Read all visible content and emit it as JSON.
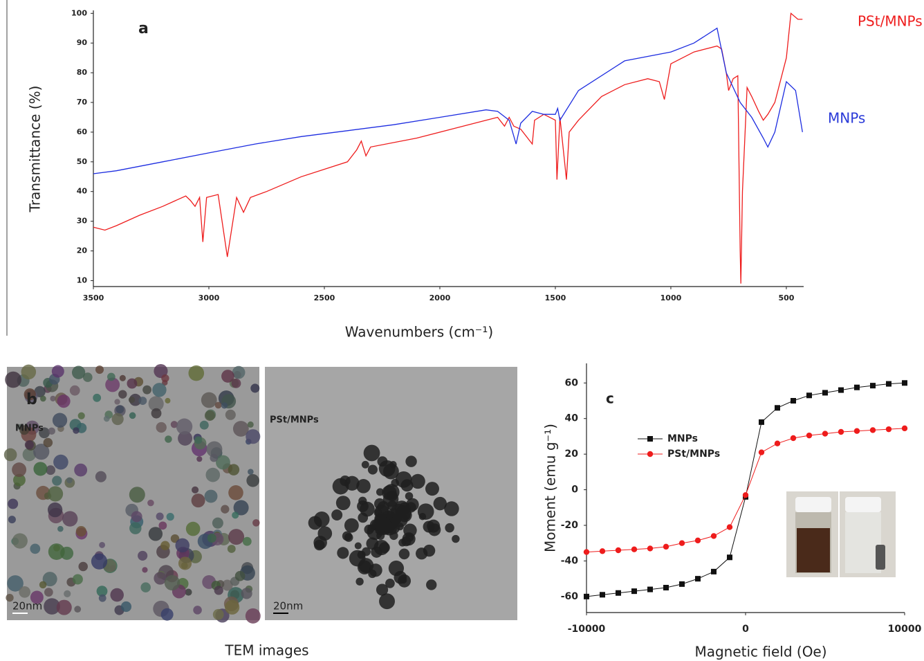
{
  "chart_data": [
    {
      "type": "line",
      "panel_label": "a",
      "x_label": "Wavenumbers (cm⁻¹)",
      "y_label": "Transmittance (%)",
      "xlim": [
        3500,
        425
      ],
      "ylim": [
        8,
        101
      ],
      "xticks": [
        3500,
        3000,
        2500,
        2000,
        1500,
        1000,
        500
      ],
      "yticks": [
        10,
        20,
        30,
        40,
        50,
        60,
        70,
        80,
        90,
        100
      ],
      "series": [
        {
          "name": "PSt/MNPs",
          "color": "#ee1c1c",
          "x": [
            3500,
            3450,
            3400,
            3300,
            3200,
            3100,
            3080,
            3060,
            3040,
            3026,
            3010,
            2960,
            2920,
            2880,
            2850,
            2820,
            2750,
            2600,
            2400,
            2360,
            2340,
            2320,
            2300,
            2100,
            1950,
            1800,
            1750,
            1720,
            1700,
            1680,
            1650,
            1600,
            1590,
            1550,
            1500,
            1493,
            1480,
            1452,
            1440,
            1400,
            1300,
            1200,
            1100,
            1050,
            1028,
            1000,
            900,
            800,
            780,
            760,
            750,
            730,
            710,
            700,
            697,
            690,
            670,
            650,
            620,
            600,
            580,
            550,
            500,
            480,
            450,
            430
          ],
          "values": [
            28,
            27,
            28.5,
            32,
            35,
            38.5,
            37,
            35,
            38,
            23,
            38,
            39,
            18,
            38,
            33,
            38,
            40,
            45,
            50,
            54,
            57,
            52,
            55,
            58,
            61,
            64,
            65,
            62,
            65,
            62,
            61,
            56,
            64,
            66,
            64,
            44,
            65,
            44,
            60,
            64,
            72,
            76,
            78,
            77,
            71,
            83,
            87,
            89,
            88,
            80,
            74,
            78,
            79,
            20,
            9,
            40,
            75,
            72,
            67,
            64,
            66,
            70,
            85,
            100,
            98,
            98
          ]
        },
        {
          "name": "MNPs",
          "color": "#1c2ce0",
          "x": [
            3500,
            3400,
            3200,
            3000,
            2800,
            2600,
            2400,
            2200,
            2000,
            1800,
            1750,
            1700,
            1670,
            1650,
            1600,
            1550,
            1500,
            1490,
            1480,
            1400,
            1200,
            1000,
            900,
            800,
            760,
            700,
            650,
            600,
            580,
            550,
            500,
            460,
            430
          ],
          "values": [
            46,
            47,
            50,
            53,
            56,
            58.5,
            60.5,
            62.5,
            65,
            67.5,
            67,
            64,
            56,
            63,
            67,
            66,
            66,
            68,
            64,
            74,
            84,
            87,
            90,
            95,
            80,
            70,
            65,
            58,
            55,
            60,
            77,
            74,
            60
          ]
        }
      ]
    },
    {
      "type": "line",
      "panel_label": "c",
      "x_label": "Magnetic field (Oe)",
      "y_label": "Moment (emu g⁻¹)",
      "xlim": [
        -10000,
        10000
      ],
      "ylim": [
        -69,
        71
      ],
      "xticks": [
        -10000,
        0,
        10000
      ],
      "yticks": [
        -60,
        -40,
        -20,
        0,
        20,
        40,
        60
      ],
      "series": [
        {
          "name": "MNPs",
          "color": "#111111",
          "marker": "square",
          "x": [
            -10000,
            -9000,
            -8000,
            -7000,
            -6000,
            -5000,
            -4000,
            -3000,
            -2000,
            -1000,
            0,
            1000,
            2000,
            3000,
            4000,
            5000,
            6000,
            7000,
            8000,
            9000,
            10000
          ],
          "values": [
            -60,
            -59,
            -58,
            -57,
            -56,
            -55,
            -53,
            -50,
            -46,
            -38,
            -4,
            38,
            46,
            50,
            53,
            54.5,
            56,
            57.5,
            58.5,
            59.5,
            60
          ]
        },
        {
          "name": "PSt/MNPs",
          "color": "#ee1c1c",
          "marker": "circle",
          "x": [
            -10000,
            -9000,
            -8000,
            -7000,
            -6000,
            -5000,
            -4000,
            -3000,
            -2000,
            -1000,
            0,
            1000,
            2000,
            3000,
            4000,
            5000,
            6000,
            7000,
            8000,
            9000,
            10000
          ],
          "values": [
            -35,
            -34.5,
            -34,
            -33.5,
            -33,
            -32,
            -30,
            -28.5,
            -26,
            -21,
            -3,
            21,
            26,
            29,
            30.5,
            31.5,
            32.5,
            33,
            33.5,
            34,
            34.5
          ]
        }
      ]
    }
  ],
  "tem": {
    "panel_label": "b",
    "left_label": "MNPs",
    "right_label": "PSt/MNPs",
    "scale_left": "20nm",
    "scale_right": "20nm",
    "caption": "TEM images"
  }
}
